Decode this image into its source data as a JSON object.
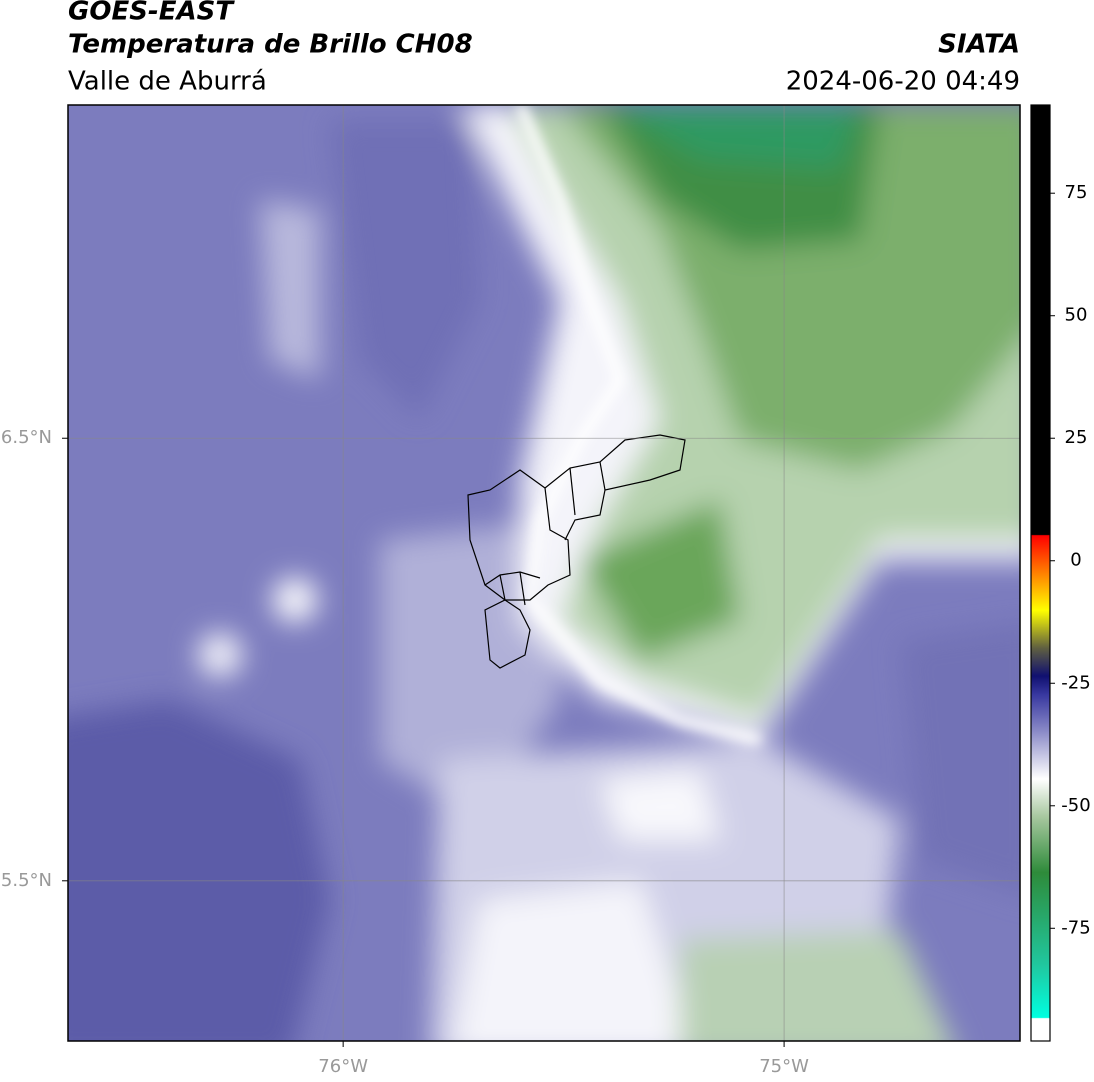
{
  "header": {
    "title": "GOES-EAST",
    "subtitle": "Temperatura de Brillo CH08",
    "region": "Valle de Aburrá",
    "source": "SIATA",
    "timestamp": "2024-06-20 04:49"
  },
  "map": {
    "lat_range": [
      5.138,
      7.253
    ],
    "lon_range": [
      -76.624,
      -74.465
    ],
    "lat_ticks": [
      {
        "value": 6.5,
        "label": "6.5°N"
      },
      {
        "value": 5.5,
        "label": "5.5°N"
      }
    ],
    "lon_ticks": [
      {
        "value": -76,
        "label": "76°W"
      },
      {
        "value": -75,
        "label": "75°W"
      }
    ]
  },
  "colorbar": {
    "range": [
      -98,
      93
    ],
    "ticks": [
      75,
      50,
      25,
      0,
      -25,
      -50,
      -75
    ]
  }
}
